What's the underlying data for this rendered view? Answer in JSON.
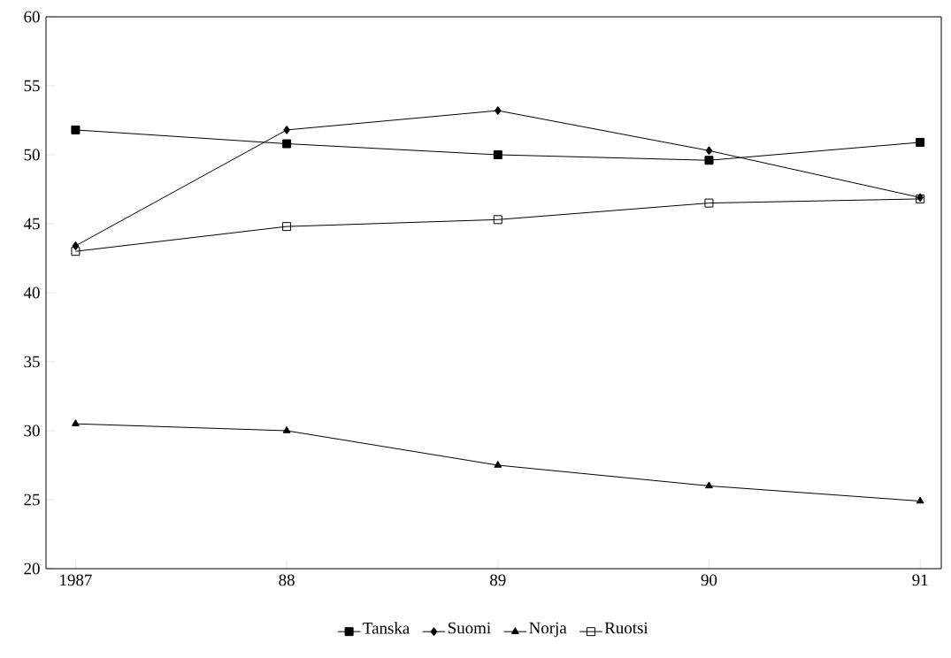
{
  "chart_data": {
    "type": "line",
    "categories": [
      "1987",
      "88",
      "89",
      "90",
      "91"
    ],
    "series": [
      {
        "name": "Tanska",
        "color": "#000000",
        "marker": "square",
        "values": [
          51.8,
          50.8,
          50.0,
          49.6,
          50.9
        ]
      },
      {
        "name": "Suomi",
        "color": "#000000",
        "marker": "diamond",
        "values": [
          43.4,
          51.8,
          53.2,
          50.3,
          46.9
        ]
      },
      {
        "name": "Norja",
        "color": "#000000",
        "marker": "triangle",
        "values": [
          30.5,
          30.0,
          27.5,
          26.0,
          24.9
        ]
      },
      {
        "name": "Ruotsi",
        "color": "#000000",
        "marker": "square",
        "values": [
          43.0,
          44.8,
          45.3,
          46.5,
          46.8
        ]
      }
    ],
    "ylim": [
      20,
      60
    ],
    "yticks": [
      20,
      25,
      30,
      35,
      40,
      45,
      50,
      55,
      60
    ],
    "grid": false,
    "legend": "bottom",
    "line_style": "solid"
  }
}
